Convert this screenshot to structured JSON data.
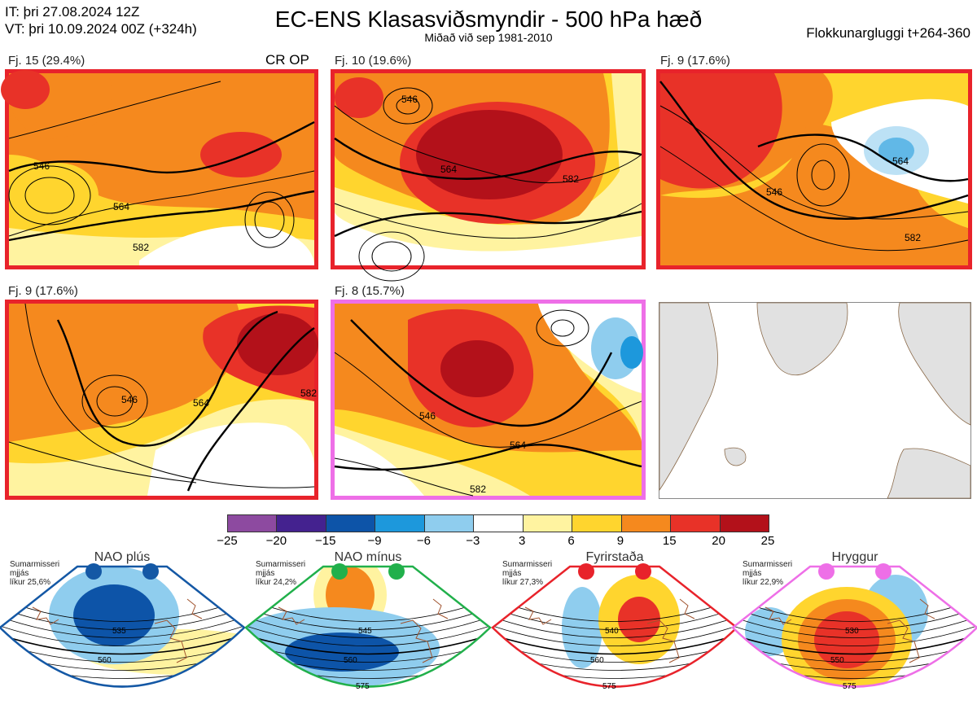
{
  "header": {
    "it": "IT: þri 27.08.2024 12Z",
    "vt": "VT: þri 10.09.2024 00Z  (+324h)",
    "title": "EC-ENS Klasasviðsmyndir - 500 hPa hæð",
    "subtitle": "Miðað við sep 1981-2010",
    "window": "Flokkunargluggi t+264-360"
  },
  "panels": [
    {
      "label": "Fj. 15 (29.4%)",
      "extra": "CR OP",
      "border": "#e8232b",
      "contours": [
        "546",
        "564",
        "582"
      ]
    },
    {
      "label": "Fj. 10 (19.6%)",
      "border": "#e8232b",
      "contours": [
        "546",
        "564",
        "582"
      ]
    },
    {
      "label": "Fj. 9 (17.6%)",
      "border": "#e8232b",
      "contours": [
        "546",
        "564",
        "582"
      ]
    },
    {
      "label": "Fj. 9 (17.6%)",
      "border": "#e8232b",
      "contours": [
        "546",
        "564",
        "582"
      ]
    },
    {
      "label": "Fj. 8 (15.7%)",
      "border": "#ee6fe7",
      "contours": [
        "546",
        "564",
        "582"
      ]
    }
  ],
  "colorbar": {
    "ticks": [
      "−25",
      "−20",
      "−15",
      "−9",
      "−6",
      "−3",
      "3",
      "6",
      "9",
      "15",
      "20",
      "25"
    ],
    "colors": [
      "#8d4aa0",
      "#44228f",
      "#0d54a8",
      "#1d98dc",
      "#8fcdee",
      "#ffffff",
      "#fff3a0",
      "#ffd52e",
      "#f5891e",
      "#e83228",
      "#b3111a"
    ]
  },
  "regimes": [
    {
      "name": "NAO plús",
      "note": [
        "Sumarmisseri",
        "mjjás",
        "líkur 25,6%"
      ],
      "color": "#1458a5",
      "labels": [
        "535",
        "560"
      ]
    },
    {
      "name": "NAO mínus",
      "note": [
        "Sumarmisseri",
        "mjjás",
        "líkur 24,2%"
      ],
      "color": "#21b04b",
      "labels": [
        "545",
        "560",
        "575"
      ]
    },
    {
      "name": "Fyrirstaða",
      "note": [
        "Sumarmisseri",
        "mjjás",
        "líkur 27,3%"
      ],
      "color": "#e8232b",
      "labels": [
        "540",
        "560",
        "575"
      ]
    },
    {
      "name": "Hryggur",
      "note": [
        "Sumarmisseri",
        "mjjás",
        "líkur 22,9%"
      ],
      "color": "#ee6fe7",
      "labels": [
        "530",
        "550",
        "575"
      ]
    }
  ]
}
